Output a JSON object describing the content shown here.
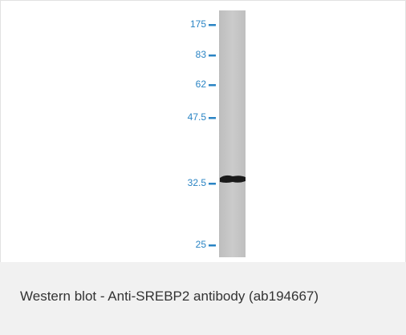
{
  "blot": {
    "markers": [
      "175",
      "83",
      "62",
      "47.5",
      "32.5",
      "25"
    ]
  },
  "caption": "Western blot - Anti-SREBP2 antibody (ab194667)"
}
